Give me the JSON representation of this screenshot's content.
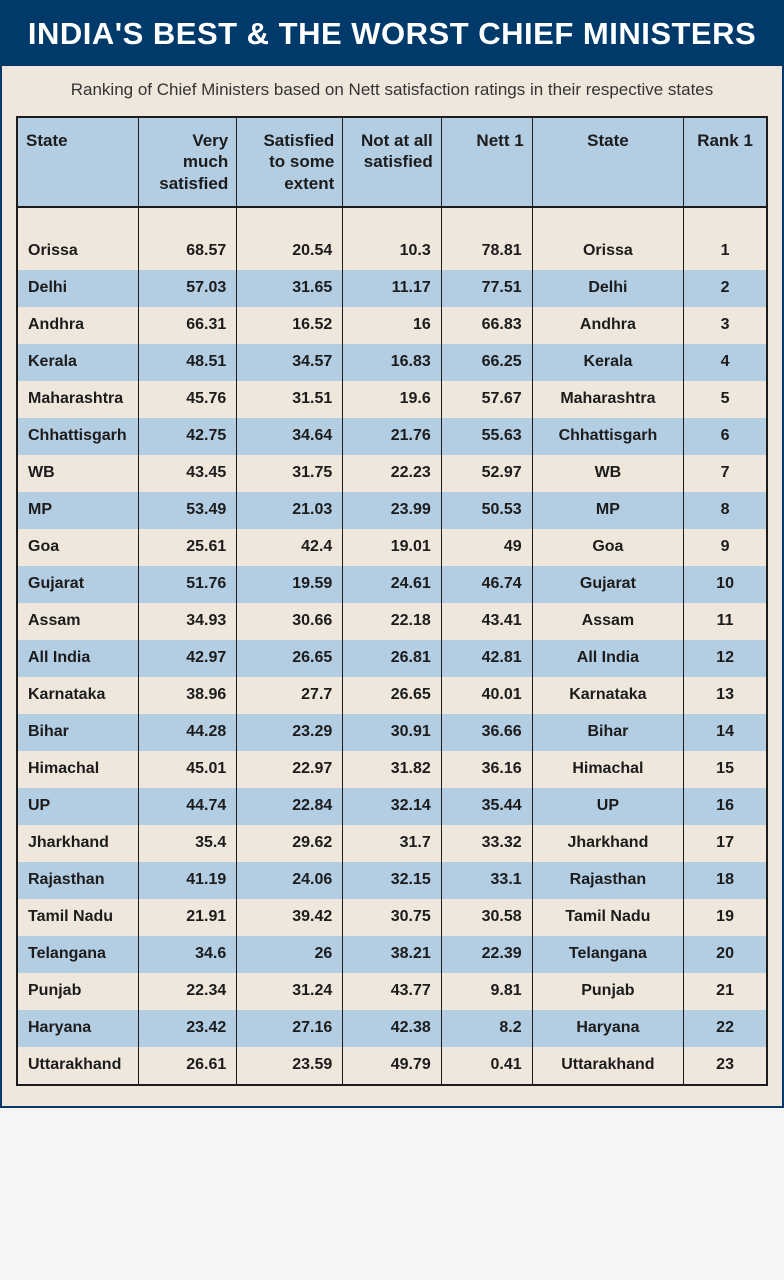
{
  "header": {
    "title": "INDIA'S BEST & THE WORST CHIEF MINISTERS",
    "subtitle": "Ranking of Chief Ministers based on Nett satisfaction ratings in their respective states"
  },
  "table": {
    "columns": [
      "State",
      "Very much satisfied",
      "Satisfied to some extent",
      "Not at all satisfied",
      "Nett 1",
      "State",
      "Rank 1"
    ],
    "col_classes": [
      "c-state",
      "c-vm",
      "c-some",
      "c-not",
      "c-nett",
      "c-state2",
      "c-rank"
    ],
    "rows": [
      [
        "Orissa",
        "68.57",
        "20.54",
        "10.3",
        "78.81",
        "Orissa",
        "1"
      ],
      [
        "Delhi",
        "57.03",
        "31.65",
        "11.17",
        "77.51",
        "Delhi",
        "2"
      ],
      [
        "Andhra",
        "66.31",
        "16.52",
        "16",
        "66.83",
        "Andhra",
        "3"
      ],
      [
        "Kerala",
        "48.51",
        "34.57",
        "16.83",
        "66.25",
        "Kerala",
        "4"
      ],
      [
        "Maharashtra",
        "45.76",
        "31.51",
        "19.6",
        "57.67",
        "Maharashtra",
        "5"
      ],
      [
        "Chhattisgarh",
        "42.75",
        "34.64",
        "21.76",
        "55.63",
        "Chhattisgarh",
        "6"
      ],
      [
        "WB",
        "43.45",
        "31.75",
        "22.23",
        "52.97",
        "WB",
        "7"
      ],
      [
        "MP",
        "53.49",
        "21.03",
        "23.99",
        "50.53",
        "MP",
        "8"
      ],
      [
        "Goa",
        "25.61",
        "42.4",
        "19.01",
        "49",
        "Goa",
        "9"
      ],
      [
        "Gujarat",
        "51.76",
        "19.59",
        "24.61",
        "46.74",
        "Gujarat",
        "10"
      ],
      [
        "Assam",
        "34.93",
        "30.66",
        "22.18",
        "43.41",
        "Assam",
        "11"
      ],
      [
        "All India",
        "42.97",
        "26.65",
        "26.81",
        "42.81",
        "All India",
        "12"
      ],
      [
        "Karnataka",
        "38.96",
        "27.7",
        "26.65",
        "40.01",
        "Karnataka",
        "13"
      ],
      [
        "Bihar",
        "44.28",
        "23.29",
        "30.91",
        "36.66",
        "Bihar",
        "14"
      ],
      [
        "Himachal",
        "45.01",
        "22.97",
        "31.82",
        "36.16",
        "Himachal",
        "15"
      ],
      [
        "UP",
        "44.74",
        "22.84",
        "32.14",
        "35.44",
        "UP",
        "16"
      ],
      [
        "Jharkhand",
        "35.4",
        "29.62",
        "31.7",
        "33.32",
        "Jharkhand",
        "17"
      ],
      [
        "Rajasthan",
        "41.19",
        "24.06",
        "32.15",
        "33.1",
        "Rajasthan",
        "18"
      ],
      [
        "Tamil Nadu",
        "21.91",
        "39.42",
        "30.75",
        "30.58",
        "Tamil Nadu",
        "19"
      ],
      [
        "Telangana",
        "34.6",
        "26",
        "38.21",
        "22.39",
        "Telangana",
        "20"
      ],
      [
        "Punjab",
        "22.34",
        "31.24",
        "43.77",
        "9.81",
        "Punjab",
        "21"
      ],
      [
        "Haryana",
        "23.42",
        "27.16",
        "42.38",
        "8.2",
        "Haryana",
        "22"
      ],
      [
        "Uttarakhand",
        "26.61",
        "23.59",
        "49.79",
        "0.41",
        "Uttarakhand",
        "23"
      ]
    ]
  },
  "style": {
    "title_bg": "#003a6b",
    "title_color": "#ffffff",
    "page_bg": "#efe7dc",
    "header_row_bg": "#b3cde3",
    "alt_row_bg": "#b3cde3",
    "border_color": "#1c1c1c",
    "body_font_size": 16,
    "header_font_size": 17
  }
}
